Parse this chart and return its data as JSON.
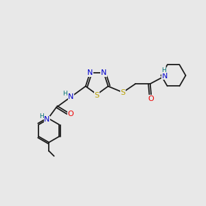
{
  "background_color": "#e8e8e8",
  "bond_color": "#1a1a1a",
  "atom_colors": {
    "N": "#0000cc",
    "S": "#b8a000",
    "O": "#ee0000",
    "H": "#007070",
    "C": "#1a1a1a"
  },
  "font_size_atom": 7.5,
  "fig_width": 3.0,
  "fig_height": 3.0,
  "dpi": 100
}
